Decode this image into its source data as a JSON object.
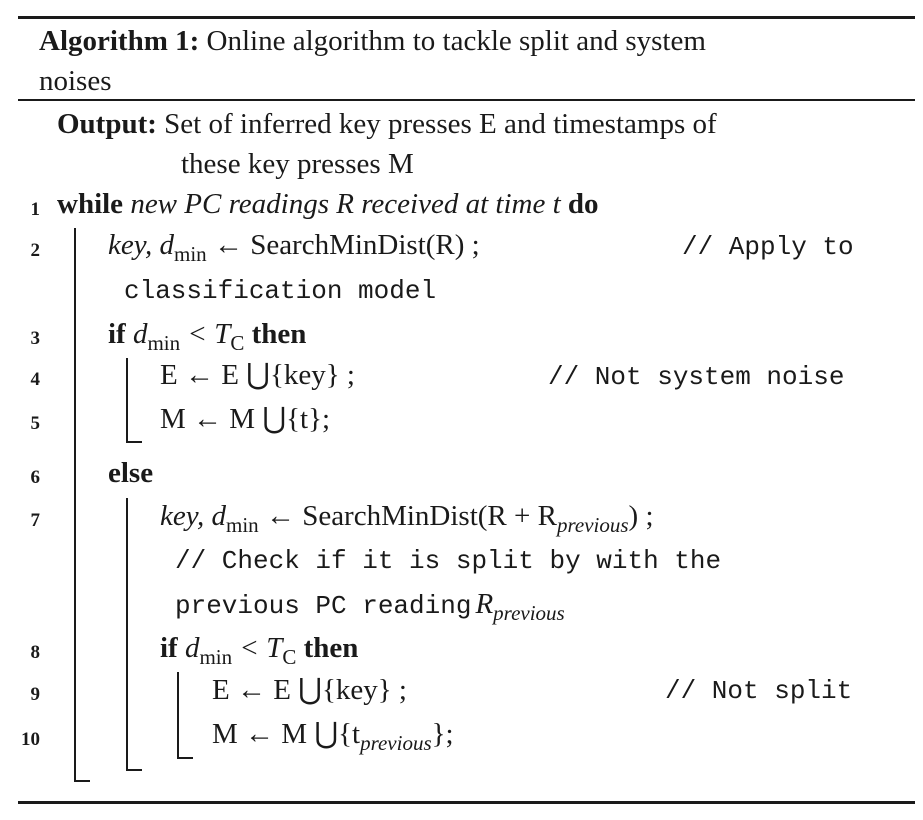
{
  "caption": {
    "label": "Algorithm 1:",
    "title_line1": "Online algorithm to tackle split and system",
    "title_line2": "noises"
  },
  "output": {
    "label": "Output:",
    "line1": "Set of inferred key presses E and timestamps of",
    "line2": "these key presses M"
  },
  "lines": [
    {
      "num": "1",
      "kw1": "while",
      "cond": "new PC readings R received at time t",
      "kw2": "do"
    },
    {
      "num": "2",
      "lhs": "key, d",
      "sub": "min",
      "arrow": "←",
      "call": "SearchMinDist(R) ;",
      "comment1": "// Apply to",
      "comment2": "classification model"
    },
    {
      "num": "3",
      "kw1": "if",
      "cond": "d",
      "sub": "min",
      "op": "< T",
      "sub2": "C",
      "kw2": "then"
    },
    {
      "num": "4",
      "stmt": "E ← E ⋃{key} ;",
      "comment": "// Not system noise"
    },
    {
      "num": "5",
      "stmt": "M ← M ⋃{t};"
    },
    {
      "num": "6",
      "kw1": "else"
    },
    {
      "num": "7",
      "lhs": "key, d",
      "sub": "min",
      "arrow": "←",
      "call": "SearchMinDist(R + R",
      "sub2": "previous",
      "end": ") ;",
      "comment1": "// Check if it is split by with the",
      "comment2": "previous PC reading",
      "comment2_var": "R",
      "comment2_sub": "previous"
    },
    {
      "num": "8",
      "kw1": "if",
      "cond": "d",
      "sub": "min",
      "op": "< T",
      "sub2": "C",
      "kw2": "then"
    },
    {
      "num": "9",
      "stmt": "E ← E ⋃{key} ;",
      "comment": "// Not split"
    },
    {
      "num": "10",
      "stmt_a": "M ← M ⋃{t",
      "sub": "previous",
      "stmt_b": "};"
    }
  ]
}
